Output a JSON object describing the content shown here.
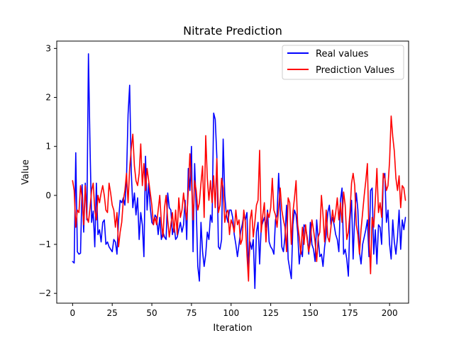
{
  "chart_data": {
    "type": "line",
    "title": "Nitrate Prediction",
    "xlabel": "Iteration",
    "ylabel": "Value",
    "xlim": [
      -10,
      212
    ],
    "ylim": [
      -2.2,
      3.15
    ],
    "xticks": [
      0,
      25,
      50,
      75,
      100,
      125,
      150,
      175,
      200
    ],
    "yticks": [
      -2,
      -1,
      0,
      1,
      2,
      3
    ],
    "grid": false,
    "legend": "top-right",
    "series": [
      {
        "name": "Real values",
        "color": "#0000ff",
        "x_start": 0,
        "values": [
          -1.35,
          -1.38,
          0.87,
          -1.15,
          -1.2,
          -1.18,
          0.22,
          -0.75,
          0.25,
          -0.5,
          2.89,
          1.0,
          -0.55,
          -0.32,
          -1.05,
          0.25,
          -0.8,
          -0.7,
          -0.95,
          -0.55,
          -0.5,
          -1.0,
          -0.95,
          -1.05,
          -1.1,
          -1.15,
          -0.9,
          -0.95,
          -1.2,
          -0.5,
          -0.1,
          -0.15,
          -0.05,
          -0.2,
          0.35,
          1.65,
          2.25,
          0.5,
          -0.25,
          0.05,
          -0.4,
          -0.05,
          -0.9,
          -0.35,
          -0.6,
          -1.25,
          0.8,
          -0.3,
          0.25,
          -0.25,
          -0.55,
          -0.6,
          -0.4,
          -0.45,
          -0.8,
          -0.45,
          -0.9,
          -0.75,
          -0.85,
          -0.9,
          0.05,
          -0.25,
          -0.3,
          -0.8,
          -0.6,
          -0.9,
          -0.85,
          -0.7,
          -0.55,
          -0.75,
          -0.6,
          -0.1,
          -0.9,
          0.55,
          0.1,
          1.0,
          -1.15,
          0.65,
          -0.25,
          -1.45,
          -1.75,
          -0.55,
          -1.15,
          -1.45,
          -1.2,
          -0.75,
          -0.9,
          -0.4,
          -0.55,
          1.68,
          1.55,
          0.8,
          -1.05,
          -1.1,
          -0.9,
          1.15,
          0.0,
          -0.4,
          -0.55,
          -0.3,
          -0.3,
          -0.45,
          -0.8,
          -1.0,
          -1.25,
          -1.0,
          -0.75,
          -0.6,
          -0.4,
          -0.5,
          -0.35,
          -1.5,
          -0.95,
          -1.1,
          -0.9,
          -1.9,
          -0.75,
          -0.55,
          -1.4,
          -0.65,
          -0.55,
          -0.45,
          -0.65,
          -0.3,
          -0.95,
          -1.05,
          -1.1,
          -1.2,
          -0.5,
          -0.4,
          0.45,
          -0.3,
          -1.05,
          -1.15,
          -0.85,
          -0.2,
          -1.3,
          -1.5,
          -1.7,
          -0.6,
          -0.3,
          -0.4,
          -0.75,
          -1.4,
          -1.1,
          -1.25,
          -0.6,
          -0.65,
          -0.85,
          -1.2,
          -0.55,
          -1.0,
          -1.1,
          -1.35,
          -0.5,
          -0.9,
          -1.25,
          -1.2,
          -1.45,
          -1.05,
          -0.8,
          -0.35,
          -0.2,
          -0.6,
          -0.45,
          -0.6,
          -0.8,
          -0.9,
          -1.15,
          -0.1,
          0.15,
          -1.2,
          -1.1,
          -1.3,
          -1.65,
          -0.5,
          -0.1,
          -1.3,
          -0.4,
          0.05,
          -0.3,
          -1.15,
          -1.4,
          -1.0,
          -0.85,
          -0.7,
          -0.5,
          -1.25,
          0.1,
          0.15,
          -1.2,
          -0.7,
          -1.4,
          -0.6,
          -0.65,
          -1.0,
          0.35,
          0.45,
          -0.55,
          -0.3,
          -1.0,
          -1.3,
          -0.5,
          -0.95,
          -1.2,
          -0.85,
          -0.3,
          -1.1,
          -0.5,
          -0.7,
          -0.45
        ]
      },
      {
        "name": "Prediction Values",
        "color": "#ff0000",
        "x_start": 0,
        "values": [
          0.3,
          0.1,
          -0.65,
          -0.3,
          -0.35,
          0.2,
          -0.05,
          -0.6,
          0.2,
          -0.45,
          -0.55,
          -0.25,
          0.1,
          0.25,
          -0.3,
          -0.5,
          0.0,
          -0.15,
          0.05,
          0.2,
          0.0,
          -0.3,
          -0.35,
          0.25,
          0.05,
          -0.2,
          -0.3,
          -0.65,
          -0.35,
          -1.05,
          -0.75,
          -0.55,
          -0.1,
          0.1,
          0.45,
          -0.15,
          0.55,
          0.95,
          1.25,
          0.6,
          0.3,
          0.2,
          0.45,
          1.05,
          0.2,
          0.65,
          0.1,
          0.55,
          0.3,
          0.05,
          -0.2,
          -0.6,
          -0.45,
          -0.6,
          -0.3,
          0.0,
          -0.55,
          -0.85,
          -0.25,
          0.0,
          -0.5,
          -0.85,
          -0.6,
          -0.35,
          -0.75,
          -0.3,
          -0.8,
          -0.05,
          -0.45,
          -0.3,
          0.05,
          -0.25,
          -0.5,
          0.1,
          0.85,
          0.3,
          -0.5,
          0.3,
          0.1,
          -0.3,
          -0.15,
          0.25,
          0.6,
          -0.45,
          1.22,
          0.35,
          -0.1,
          0.3,
          -0.15,
          0.4,
          -0.25,
          0.75,
          -0.35,
          -0.2,
          0.35,
          0.15,
          -0.55,
          -0.35,
          -0.3,
          -0.8,
          -0.5,
          -0.6,
          -0.75,
          -0.3,
          -0.6,
          -0.5,
          -1.0,
          -0.9,
          -0.3,
          -0.55,
          -1.2,
          -1.75,
          -0.5,
          -0.3,
          -0.85,
          -0.55,
          -0.2,
          -0.1,
          0.92,
          -0.75,
          -0.4,
          -0.15,
          -0.95,
          -0.35,
          -0.45,
          -0.25,
          0.35,
          -0.3,
          -0.4,
          -0.65,
          -0.25,
          0.15,
          -0.3,
          -0.5,
          -0.65,
          -1.15,
          -0.05,
          -0.15,
          -1.0,
          -0.35,
          -0.05,
          0.3,
          -0.6,
          -0.85,
          -1.2,
          -0.65,
          -1.0,
          -0.6,
          -0.9,
          -1.15,
          -0.95,
          -0.5,
          -0.7,
          -0.95,
          -1.35,
          -0.85,
          -0.75,
          0.0,
          -0.4,
          -0.95,
          -0.3,
          -0.85,
          -0.95,
          -0.65,
          -0.3,
          -0.55,
          -0.35,
          -0.05,
          -0.5,
          -0.15,
          -0.55,
          0.07,
          -0.2,
          -0.9,
          -0.75,
          -0.35,
          0.25,
          0.45,
          0.2,
          -0.6,
          -0.8,
          -1.2,
          -0.7,
          -0.35,
          0.0,
          0.3,
          0.65,
          -0.8,
          -1.6,
          -0.45,
          -0.65,
          -0.1,
          0.55,
          -0.35,
          -0.15,
          -0.45,
          0.45,
          0.35,
          0.1,
          0.2,
          0.7,
          1.62,
          1.2,
          0.9,
          0.35,
          0.1,
          0.4,
          -0.25,
          0.2,
          0.15,
          -0.1
        ]
      }
    ]
  }
}
